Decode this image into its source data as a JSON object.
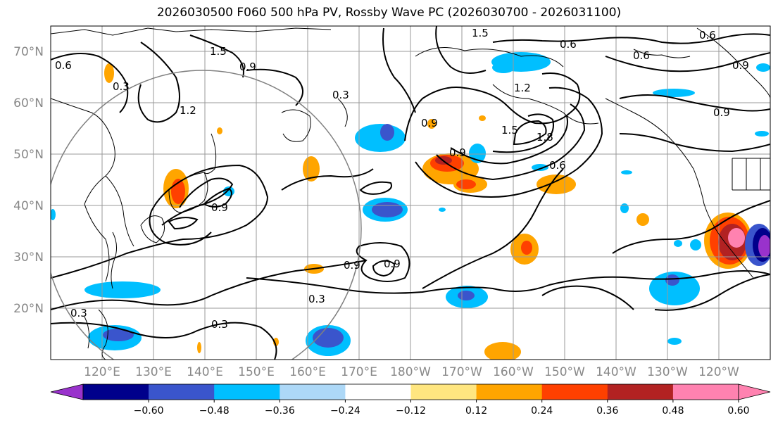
{
  "title": "2026030500 F060 500 hPa PV, Rossby Wave PC (2026030700 - 2026031100)",
  "lat_labels": [
    "70°N",
    "60°N",
    "50°N",
    "40°N",
    "30°N",
    "20°N"
  ],
  "lon_labels": [
    "120°E",
    "130°E",
    "140°E",
    "150°E",
    "160°E",
    "170°E",
    "180°W",
    "170°W",
    "160°W",
    "150°W",
    "140°W",
    "130°W",
    "120°W"
  ],
  "colorbar": {
    "ticks": [
      "−0.60",
      "−0.48",
      "−0.36",
      "−0.24",
      "−0.12",
      "0.12",
      "0.24",
      "0.36",
      "0.48",
      "0.60"
    ],
    "colors": [
      "#9932cc",
      "#00008b",
      "#3a55cc",
      "#00bfff",
      "#add8f7",
      "#ffffff",
      "#ffe680",
      "#ffa500",
      "#ff4000",
      "#b22222",
      "#ff82b0",
      "#ff82b0"
    ]
  },
  "contour_labels": [
    "1.5",
    "0.6",
    "1.5",
    "0.9",
    "0.6",
    "0.6",
    "0.9",
    "0.9",
    "0.3",
    "1.2",
    "0.3",
    "0.9",
    "1.8",
    "0.6",
    "0.9",
    "0.3",
    "0.9",
    "0.3",
    "0.6",
    "0.9",
    "0.3",
    "1.5",
    "1.2",
    "0.9"
  ],
  "colors": {
    "contour": "#000000",
    "coast": "#000000",
    "grid": "#999999",
    "circle": "#808080"
  }
}
